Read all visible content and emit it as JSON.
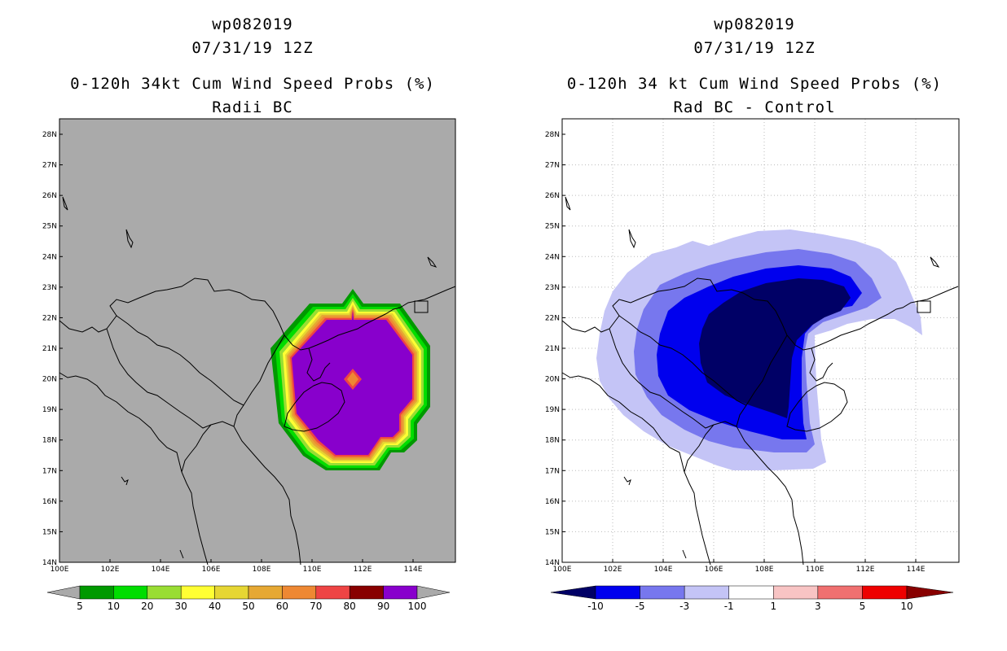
{
  "left_panel": {
    "title_line1": "wp082019",
    "title_line2": "07/31/19 12Z",
    "title_line3": "0-120h 34kt Cum Wind Speed Probs (%)",
    "title_line4": "Radii BC",
    "colorbar": {
      "labels": [
        "5",
        "10",
        "20",
        "30",
        "40",
        "50",
        "60",
        "70",
        "80",
        "90",
        "100"
      ],
      "colors": [
        "#009900",
        "#00dd00",
        "#99dd33",
        "#ffff33",
        "#e6d633",
        "#e6a833",
        "#ee8833",
        "#ee4444",
        "#880000",
        "#8800cc"
      ]
    }
  },
  "right_panel": {
    "title_line1": "wp082019",
    "title_line2": "07/31/19 12Z",
    "title_line3": "0-120h 34 kt Cum Wind Speed Probs (%)",
    "title_line4": "Rad BC - Control",
    "colorbar": {
      "labels": [
        "-10",
        "-5",
        "-3",
        "-1",
        "1",
        "3",
        "5",
        "10"
      ],
      "colors": [
        "#0000ee",
        "#7777ee",
        "#c4c4f6",
        "#ffffff",
        "#f8c4c4",
        "#f07070",
        "#ee0000"
      ]
    }
  },
  "axes": {
    "lat_labels": [
      "28N",
      "27N",
      "26N",
      "25N",
      "24N",
      "23N",
      "22N",
      "21N",
      "20N",
      "19N",
      "18N",
      "17N",
      "16N",
      "15N",
      "14N"
    ],
    "lon_labels": [
      "100E",
      "102E",
      "104E",
      "106E",
      "108E",
      "110E",
      "112E",
      "114E"
    ]
  },
  "colors": {
    "map_gray": "#aaaaaa",
    "purple": "#8800cc",
    "navy": "#000066",
    "blue": "#0000ee",
    "mid_blue": "#7777ee",
    "light_blue": "#c4c4f6"
  }
}
